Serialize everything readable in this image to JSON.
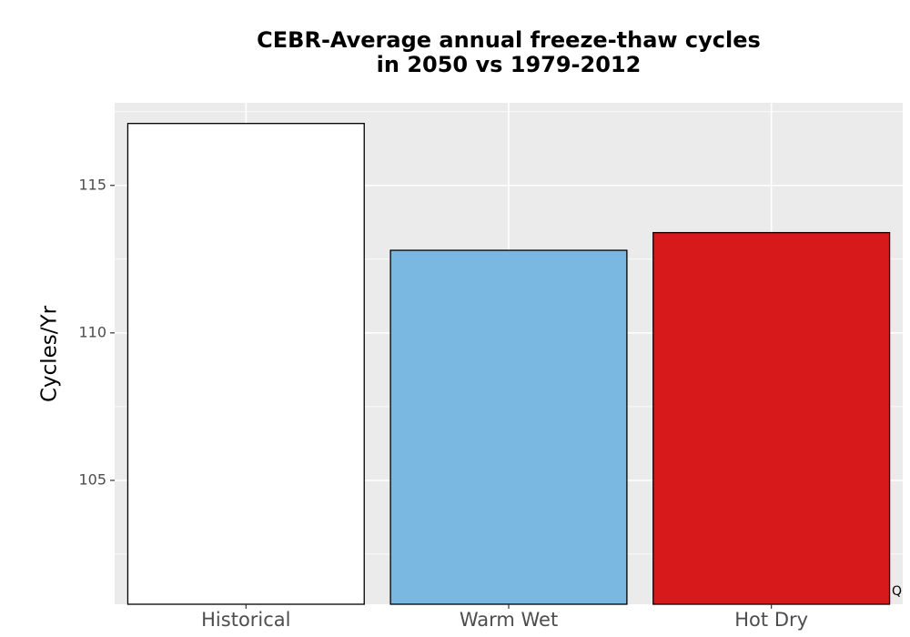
{
  "chart_data": {
    "type": "bar",
    "title": "CEBR-Average annual freeze-thaw cycles",
    "subtitle": "in 2050 vs 1979-2012",
    "xlabel": "",
    "ylabel": "Cycles/Yr",
    "categories": [
      "Historical",
      "Warm Wet",
      "Hot Dry"
    ],
    "values": [
      117.1,
      112.8,
      113.4
    ],
    "bar_colors": [
      "#ffffff",
      "#7ab7e1",
      "#d7191c"
    ],
    "bar_outline": "#000000",
    "ylim": [
      100.8,
      117.8
    ],
    "yticks": [
      105,
      110,
      115
    ],
    "ytick_labels": [
      "105",
      "110",
      "115"
    ],
    "grid": true,
    "panel_background": "#ebebeb",
    "grid_color": "#ffffff",
    "legend": "none"
  },
  "corner_mark": "Q"
}
